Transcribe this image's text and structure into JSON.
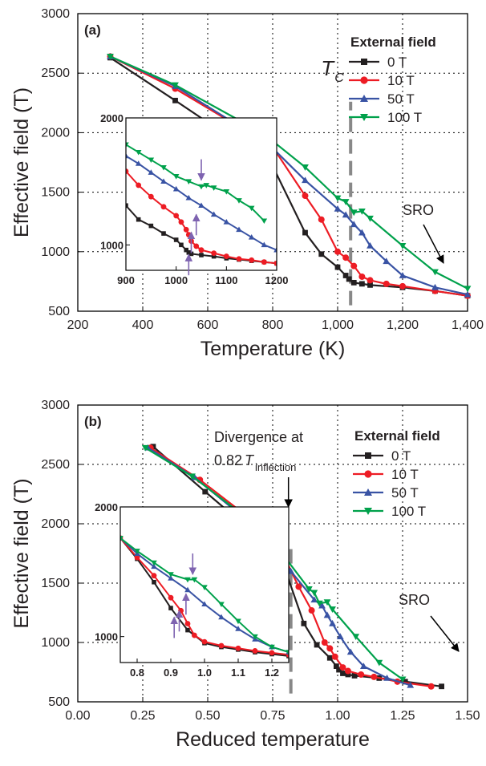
{
  "chart_data": [
    {
      "type": "line",
      "panel_label": "(a)",
      "xlabel": "Temperature (K)",
      "ylabel": "Effective field (T)",
      "xlim": [
        200,
        1400
      ],
      "ylim": [
        500,
        3000
      ],
      "x_ticks": [
        "200",
        "400",
        "600",
        "800",
        "1,000",
        "1,200",
        "1,400"
      ],
      "y_ticks": [
        "500",
        "1000",
        "1500",
        "2000",
        "2500",
        "3000"
      ],
      "grid": true,
      "legend_title": "External field",
      "legend_position": "top-right",
      "series": [
        {
          "name": "0 T",
          "color": "#231f20",
          "marker": "square",
          "x": [
            300,
            500,
            800,
            900,
            950,
            1000,
            1025,
            1035,
            1050,
            1075,
            1100,
            1200,
            1300,
            1400
          ],
          "y": [
            2630,
            2270,
            1720,
            1160,
            980,
            870,
            800,
            770,
            740,
            730,
            720,
            700,
            670,
            630
          ]
        },
        {
          "name": "10 T",
          "color": "#ed1c24",
          "marker": "circle",
          "x": [
            300,
            500,
            800,
            900,
            950,
            1000,
            1025,
            1050,
            1075,
            1100,
            1150,
            1200,
            1300,
            1400
          ],
          "y": [
            2640,
            2370,
            1880,
            1470,
            1270,
            1000,
            950,
            880,
            790,
            760,
            730,
            710,
            670,
            630
          ]
        },
        {
          "name": "50 T",
          "color": "#3953a4",
          "marker": "triangle-up",
          "x": [
            300,
            500,
            700,
            800,
            900,
            1000,
            1025,
            1050,
            1075,
            1100,
            1150,
            1200,
            1300,
            1400
          ],
          "y": [
            2640,
            2390,
            2050,
            1870,
            1600,
            1360,
            1310,
            1230,
            1160,
            1050,
            920,
            800,
            700,
            640
          ]
        },
        {
          "name": "100 T",
          "color": "#00a14b",
          "marker": "triangle-down",
          "x": [
            300,
            500,
            700,
            800,
            900,
            1000,
            1025,
            1050,
            1075,
            1100,
            1200,
            1300,
            1400
          ],
          "y": [
            2640,
            2400,
            2100,
            1930,
            1710,
            1450,
            1420,
            1330,
            1340,
            1280,
            1050,
            830,
            690
          ]
        }
      ],
      "annotations": {
        "tc_label": "T",
        "tc_sub": "C",
        "tc_x": 1040,
        "sro_label": "SRO"
      },
      "inset": {
        "xlim": [
          900,
          1200
        ],
        "ylim": [
          800,
          2000
        ],
        "x_ticks": [
          "900",
          "1000",
          "1100",
          "1200"
        ],
        "y_ticks": [
          "1000",
          "2000"
        ],
        "series": [
          {
            "name": "0 T",
            "color": "#231f20",
            "marker": "square",
            "x": [
              900,
              925,
              950,
              975,
              1000,
              1010,
              1020,
              1025,
              1030,
              1050,
              1075,
              1100,
              1125,
              1150,
              1175,
              1200
            ],
            "y": [
              1310,
              1200,
              1150,
              1090,
              1040,
              1000,
              960,
              940,
              930,
              920,
              910,
              895,
              885,
              875,
              865,
              855
            ]
          },
          {
            "name": "10 T",
            "color": "#ed1c24",
            "marker": "circle",
            "x": [
              900,
              925,
              950,
              975,
              1000,
              1010,
              1020,
              1025,
              1030,
              1040,
              1050,
              1075,
              1100,
              1125,
              1150,
              1175,
              1200
            ],
            "y": [
              1580,
              1470,
              1380,
              1300,
              1230,
              1180,
              1120,
              1080,
              1030,
              990,
              960,
              935,
              910,
              890,
              880,
              865,
              855
            ]
          },
          {
            "name": "50 T",
            "color": "#3953a4",
            "marker": "triangle-up",
            "x": [
              900,
              925,
              950,
              975,
              1000,
              1025,
              1050,
              1075,
              1100,
              1125,
              1150,
              1175,
              1200
            ],
            "y": [
              1700,
              1640,
              1570,
              1500,
              1440,
              1370,
              1310,
              1240,
              1180,
              1120,
              1060,
              1000,
              960
            ]
          },
          {
            "name": "100 T",
            "color": "#00a14b",
            "marker": "triangle-down",
            "x": [
              900,
              925,
              950,
              975,
              1000,
              1025,
              1050,
              1060,
              1075,
              1100,
              1125,
              1150,
              1175
            ],
            "y": [
              1790,
              1730,
              1670,
              1610,
              1540,
              1500,
              1460,
              1470,
              1450,
              1420,
              1350,
              1290,
              1190
            ]
          }
        ],
        "arrows": [
          {
            "x": 1025,
            "y": 925,
            "direction": "up"
          },
          {
            "x": 1030,
            "y": 1100,
            "direction": "up"
          },
          {
            "x": 1040,
            "y": 1240,
            "direction": "up"
          },
          {
            "x": 1050,
            "y": 1510,
            "direction": "down"
          }
        ]
      }
    },
    {
      "type": "line",
      "panel_label": "(b)",
      "xlabel": "Reduced temperature",
      "ylabel": "Effective field (T)",
      "xlim": [
        0.0,
        1.5
      ],
      "ylim": [
        500,
        3000
      ],
      "x_ticks": [
        "0.00",
        "0.25",
        "0.50",
        "0.75",
        "1.00",
        "1.25",
        "1.50"
      ],
      "y_ticks": [
        "500",
        "1000",
        "1500",
        "2000",
        "2500",
        "3000"
      ],
      "grid": true,
      "legend_title": "External field",
      "legend_position": "top-right",
      "series": [
        {
          "name": "0 T",
          "color": "#231f20",
          "marker": "square",
          "x": [
            0.29,
            0.49,
            0.78,
            0.87,
            0.92,
            0.97,
            0.995,
            1.005,
            1.02,
            1.04,
            1.065,
            1.16,
            1.26,
            1.4
          ],
          "y": [
            2650,
            2270,
            1730,
            1160,
            980,
            870,
            800,
            770,
            740,
            730,
            720,
            700,
            670,
            630
          ]
        },
        {
          "name": "10 T",
          "color": "#ed1c24",
          "marker": "circle",
          "x": [
            0.28,
            0.47,
            0.76,
            0.85,
            0.9,
            0.95,
            0.97,
            0.99,
            1.02,
            1.04,
            1.09,
            1.14,
            1.23,
            1.36
          ],
          "y": [
            2640,
            2370,
            1880,
            1470,
            1270,
            1000,
            950,
            880,
            790,
            760,
            730,
            710,
            670,
            630
          ]
        },
        {
          "name": "50 T",
          "color": "#3953a4",
          "marker": "triangle-up",
          "x": [
            0.27,
            0.45,
            0.64,
            0.73,
            0.82,
            0.91,
            0.94,
            0.96,
            0.98,
            1.01,
            1.05,
            1.1,
            1.19,
            1.28
          ],
          "y": [
            2640,
            2390,
            2050,
            1870,
            1600,
            1360,
            1310,
            1230,
            1160,
            1050,
            920,
            800,
            700,
            640
          ]
        },
        {
          "name": "100 T",
          "color": "#00a14b",
          "marker": "triangle-down",
          "x": [
            0.26,
            0.44,
            0.62,
            0.71,
            0.8,
            0.89,
            0.91,
            0.93,
            0.96,
            0.98,
            1.07,
            1.16,
            1.25
          ],
          "y": [
            2640,
            2400,
            2100,
            1930,
            1710,
            1450,
            1420,
            1330,
            1340,
            1280,
            1050,
            830,
            690
          ]
        }
      ],
      "annotations": {
        "divergence_line1": "Divergence at",
        "divergence_prefix": "0.82",
        "divergence_T": "T",
        "divergence_sub": "inflection",
        "divergence_x": 0.82,
        "sro_label": "SRO"
      },
      "inset": {
        "xlim": [
          0.75,
          1.25
        ],
        "ylim": [
          800,
          2000
        ],
        "x_ticks": [
          "0.8",
          "0.9",
          "1.0",
          "1.1",
          "1.2"
        ],
        "y_ticks": [
          "1000",
          "2000"
        ],
        "series": [
          {
            "name": "0 T",
            "color": "#231f20",
            "marker": "square",
            "x": [
              0.75,
              0.8,
              0.85,
              0.9,
              0.95,
              1.0,
              1.05,
              1.1,
              1.15,
              1.2,
              1.25
            ],
            "y": [
              1760,
              1600,
              1420,
              1220,
              1050,
              950,
              920,
              900,
              880,
              865,
              850
            ]
          },
          {
            "name": "10 T",
            "color": "#ed1c24",
            "marker": "circle",
            "x": [
              0.75,
              0.8,
              0.85,
              0.9,
              0.93,
              0.95,
              0.97,
              1.0,
              1.05,
              1.1,
              1.15,
              1.2,
              1.25
            ],
            "y": [
              1760,
              1610,
              1470,
              1300,
              1200,
              1100,
              1010,
              960,
              930,
              910,
              890,
              875,
              860
            ]
          },
          {
            "name": "50 T",
            "color": "#3953a4",
            "marker": "triangle-up",
            "x": [
              0.75,
              0.8,
              0.85,
              0.9,
              0.95,
              1.0,
              1.05,
              1.1,
              1.15,
              1.2,
              1.25
            ],
            "y": [
              1760,
              1640,
              1540,
              1450,
              1360,
              1250,
              1150,
              1060,
              980,
              920,
              880
            ]
          },
          {
            "name": "100 T",
            "color": "#00a14b",
            "marker": "triangle-down",
            "x": [
              0.75,
              0.8,
              0.85,
              0.9,
              0.95,
              0.97,
              1.0,
              1.05,
              1.1,
              1.15,
              1.2,
              1.25
            ],
            "y": [
              1760,
              1660,
              1570,
              1480,
              1440,
              1440,
              1380,
              1250,
              1120,
              1000,
              920,
              880
            ]
          }
        ],
        "arrows": [
          {
            "x": 0.91,
            "y": 1150,
            "direction": "up"
          },
          {
            "x": 0.925,
            "y": 1200,
            "direction": "up"
          },
          {
            "x": 0.945,
            "y": 1330,
            "direction": "up"
          },
          {
            "x": 0.965,
            "y": 1480,
            "direction": "down"
          }
        ]
      }
    }
  ]
}
